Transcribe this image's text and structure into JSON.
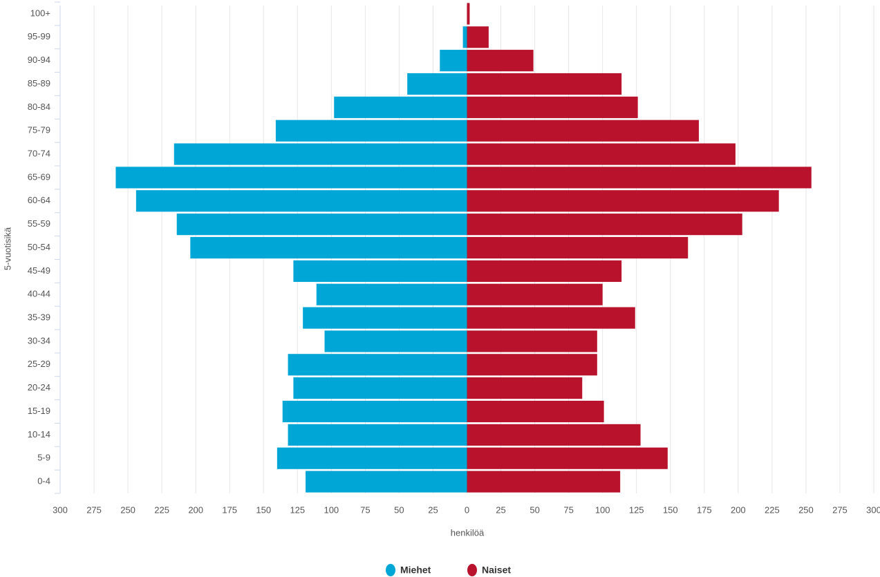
{
  "chart_data": {
    "type": "pyramid",
    "y_axis_label": "5-vuotisikä",
    "x_axis_label": "henkilöä",
    "categories": [
      "100+",
      "95-99",
      "90-94",
      "85-89",
      "80-84",
      "75-79",
      "70-74",
      "65-69",
      "60-64",
      "55-59",
      "50-54",
      "45-49",
      "40-44",
      "35-39",
      "30-34",
      "25-29",
      "20-24",
      "15-19",
      "10-14",
      "5-9",
      "0-4"
    ],
    "series": [
      {
        "name": "Miehet",
        "color": "#00a6d6",
        "values": [
          0,
          -3,
          -20,
          -44,
          -98,
          -141,
          -216,
          -259,
          -244,
          -214,
          -204,
          -128,
          -111,
          -121,
          -105,
          -132,
          -128,
          -136,
          -132,
          -140,
          -119
        ]
      },
      {
        "name": "Naiset",
        "color": "#b8122c",
        "values": [
          2,
          16,
          49,
          114,
          126,
          171,
          198,
          254,
          230,
          203,
          163,
          114,
          100,
          124,
          96,
          96,
          85,
          101,
          128,
          148,
          113
        ]
      }
    ],
    "xlim": [
      -300,
      300
    ],
    "xticks": [
      {
        "value": -300,
        "label": "300"
      },
      {
        "value": -275,
        "label": "275"
      },
      {
        "value": -250,
        "label": "250"
      },
      {
        "value": -225,
        "label": "225"
      },
      {
        "value": -200,
        "label": "200"
      },
      {
        "value": -175,
        "label": "175"
      },
      {
        "value": -150,
        "label": "150"
      },
      {
        "value": -125,
        "label": "125"
      },
      {
        "value": -100,
        "label": "100"
      },
      {
        "value": -75,
        "label": "75"
      },
      {
        "value": -50,
        "label": "50"
      },
      {
        "value": -25,
        "label": "25"
      },
      0,
      25,
      50,
      75,
      100,
      125,
      150,
      175,
      200,
      225,
      250,
      275,
      300
    ],
    "grid": true
  }
}
